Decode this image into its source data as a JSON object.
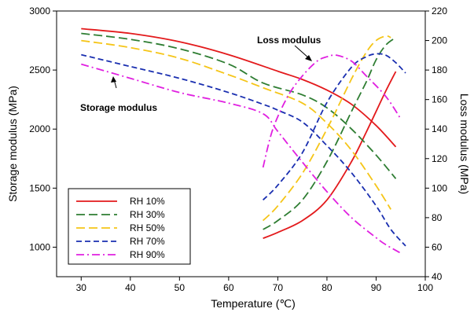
{
  "chart_data": {
    "type": "line",
    "title": "",
    "xlabel": "Temperature (℃)",
    "ylabel": "Storage  modulus (MPa)",
    "y2label": "Loss modulus (MPa)",
    "xlim": [
      25,
      100
    ],
    "ylim": [
      750,
      3000
    ],
    "y2lim": [
      40,
      220
    ],
    "xticks": [
      30,
      40,
      50,
      60,
      70,
      80,
      90,
      100
    ],
    "yticks": [
      1000,
      1500,
      2000,
      2500,
      3000
    ],
    "y2ticks": [
      40,
      60,
      80,
      100,
      120,
      140,
      160,
      180,
      200,
      220
    ],
    "grid": false,
    "legend_position": "bottom-left",
    "annotations": [
      {
        "text": "Loss modulus",
        "points_to": "loss curves near 78 ℃"
      },
      {
        "text": "Storage modulus",
        "points_to": "storage curves near 37 ℃"
      }
    ],
    "series": [
      {
        "name": "RH 10%",
        "color": "#e31a1c",
        "dash": "solid",
        "storage": {
          "x": [
            30,
            40,
            50,
            60,
            70,
            75,
            80,
            85,
            90,
            94
          ],
          "y": [
            2850,
            2810,
            2740,
            2630,
            2490,
            2420,
            2330,
            2210,
            2030,
            1850
          ]
        },
        "loss": {
          "x": [
            67,
            70,
            75,
            80,
            85,
            88,
            90,
            92,
            94
          ],
          "y": [
            66,
            70,
            78,
            92,
            118,
            138,
            152,
            166,
            179
          ]
        }
      },
      {
        "name": "RH 30%",
        "color": "#2e7d32",
        "dash": "long-dash",
        "storage": {
          "x": [
            30,
            40,
            50,
            60,
            67,
            75,
            80,
            85,
            90,
            94
          ],
          "y": [
            2810,
            2760,
            2680,
            2550,
            2390,
            2290,
            2180,
            2000,
            1780,
            1580
          ]
        },
        "loss": {
          "x": [
            67,
            70,
            75,
            80,
            85,
            88,
            90,
            92,
            94
          ],
          "y": [
            72,
            78,
            92,
            118,
            152,
            172,
            187,
            197,
            202
          ]
        }
      },
      {
        "name": "RH 50%",
        "color": "#f5c518",
        "dash": "long-dash",
        "storage": {
          "x": [
            30,
            40,
            50,
            60,
            67,
            75,
            80,
            85,
            90,
            93
          ],
          "y": [
            2750,
            2690,
            2600,
            2460,
            2350,
            2220,
            2050,
            1820,
            1520,
            1320
          ]
        },
        "loss": {
          "x": [
            67,
            70,
            75,
            80,
            85,
            88,
            90,
            92,
            93
          ],
          "y": [
            78,
            88,
            110,
            140,
            174,
            192,
            200,
            203,
            202
          ]
        }
      },
      {
        "name": "RH 70%",
        "color": "#1a2fb0",
        "dash": "dash",
        "storage": {
          "x": [
            30,
            40,
            50,
            60,
            67,
            70,
            75,
            80,
            85,
            90,
            93,
            96
          ],
          "y": [
            2630,
            2530,
            2430,
            2310,
            2210,
            2160,
            2060,
            1860,
            1630,
            1350,
            1150,
            1010
          ]
        },
        "loss": {
          "x": [
            67,
            70,
            75,
            80,
            85,
            88,
            90,
            92,
            94,
            96
          ],
          "y": [
            92,
            102,
            124,
            158,
            182,
            189,
            191,
            190,
            185,
            178
          ]
        }
      },
      {
        "name": "RH 90%",
        "color": "#e020e0",
        "dash": "dash-dot",
        "storage": {
          "x": [
            30,
            40,
            50,
            60,
            67,
            70,
            75,
            80,
            85,
            90,
            92,
            95
          ],
          "y": [
            2550,
            2430,
            2310,
            2220,
            2130,
            1980,
            1720,
            1470,
            1250,
            1080,
            1020,
            950
          ]
        },
        "loss": {
          "x": [
            67,
            69,
            72,
            75,
            78,
            80,
            82,
            85,
            88,
            92,
            95
          ],
          "y": [
            114,
            140,
            162,
            176,
            186,
            189,
            190,
            186,
            176,
            162,
            147
          ]
        }
      }
    ]
  }
}
